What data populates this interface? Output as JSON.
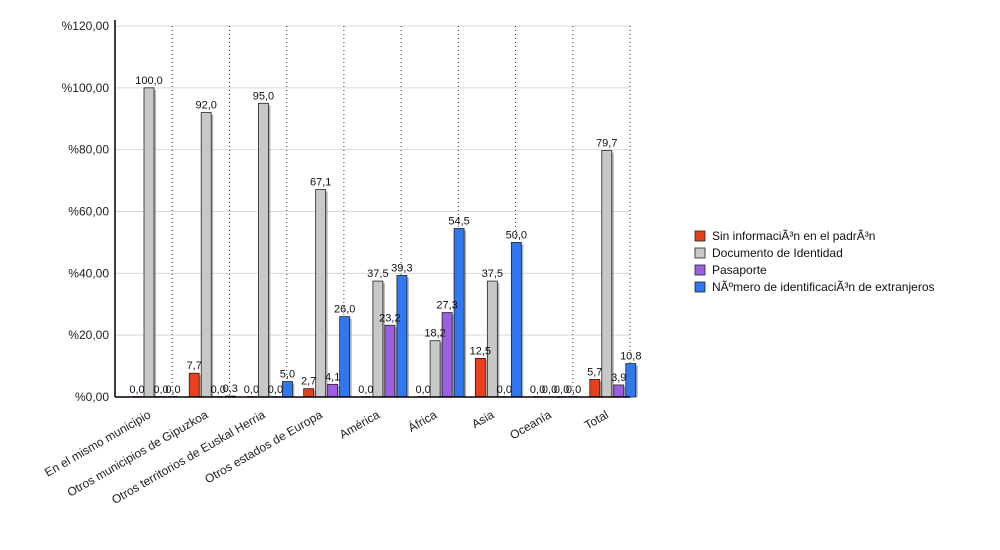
{
  "chart_data": {
    "type": "bar",
    "categories": [
      "En el mismo municipio",
      "Otros municipios de Gipuzkoa",
      "Otros territorios de Euskal Herria",
      "Otros estados de Europa",
      "América",
      "África",
      "Asia",
      "Oceanía",
      "Total"
    ],
    "series": [
      {
        "name": "Sin informaciÃ³n en el padrÃ³n",
        "color": "#e8401f",
        "values": [
          0.0,
          7.7,
          0.0,
          2.7,
          0.0,
          0.0,
          12.5,
          0.0,
          5.7
        ],
        "labels": [
          "0,0",
          "7,7",
          "0,0",
          "2,7",
          "0,0",
          "0,0",
          "12,5",
          "0,0",
          "5,7"
        ]
      },
      {
        "name": "Documento de Identidad",
        "color": "#c8c8c8",
        "values": [
          100.0,
          92.0,
          95.0,
          67.1,
          37.5,
          18.2,
          37.5,
          0.0,
          79.7
        ],
        "labels": [
          "100,0",
          "92,0",
          "95,0",
          "67,1",
          "37,5",
          "18,2",
          "37,5",
          "0,0",
          "79,7"
        ]
      },
      {
        "name": "Pasaporte",
        "color": "#9b5fe0",
        "values": [
          0.0,
          0.0,
          0.0,
          4.1,
          23.2,
          27.3,
          0.0,
          0.0,
          3.9
        ],
        "labels": [
          "0,0",
          "0,0",
          "0,0",
          "4,1",
          "23,2",
          "27,3",
          "0,0",
          "0,0",
          "3,9"
        ]
      },
      {
        "name": "NÃºmero de identificaciÃ³n de extranjeros",
        "color": "#2f78f0",
        "values": [
          0.0,
          0.3,
          5.0,
          26.0,
          39.3,
          54.5,
          50.0,
          0.0,
          10.8
        ],
        "labels": [
          "0,0",
          "0,3",
          "5,0",
          "26,0",
          "39,3",
          "54,5",
          "50,0",
          "0,0",
          "10,8"
        ]
      }
    ],
    "yticks": [
      "%0,00",
      "%20,00",
      "%40,00",
      "%60,00",
      "%80,00",
      "%100,00",
      "%120,00"
    ],
    "ylim": [
      0,
      120
    ],
    "title": "",
    "xlabel": "",
    "ylabel": "",
    "grid": true,
    "legend_position": "right"
  }
}
